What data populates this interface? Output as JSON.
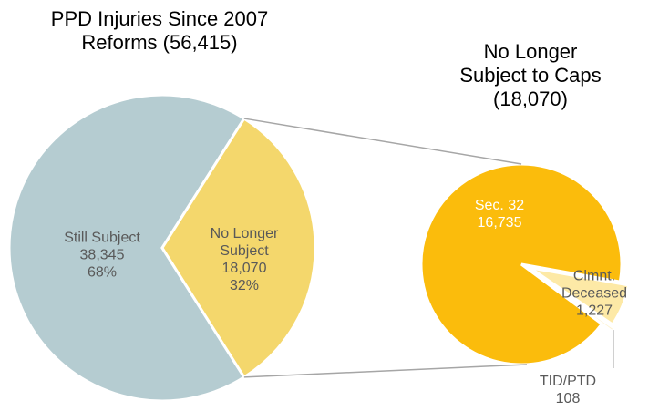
{
  "chart_data": [
    {
      "type": "pie",
      "title": "PPD Injuries Since 2007 Reforms (56,415)",
      "categories": [
        "Still Subject",
        "No Longer Subject"
      ],
      "values": [
        38345,
        18070
      ],
      "value_labels": [
        "38,345",
        "18,070"
      ],
      "percents": [
        68,
        32
      ],
      "percent_labels": [
        "68%",
        "32%"
      ],
      "colors": [
        "#b5ccd1",
        "#f4d76c"
      ]
    },
    {
      "type": "pie",
      "title": "No Longer Subject to Caps (18,070)",
      "categories": [
        "Sec. 32",
        "Clmnt. Deceased",
        "TID/PTD"
      ],
      "values": [
        16735,
        1227,
        108
      ],
      "value_labels": [
        "16,735",
        "1,227",
        "108"
      ],
      "colors": [
        "#fbbc0c",
        "#fde9a6",
        "#fdf3d2"
      ]
    }
  ]
}
